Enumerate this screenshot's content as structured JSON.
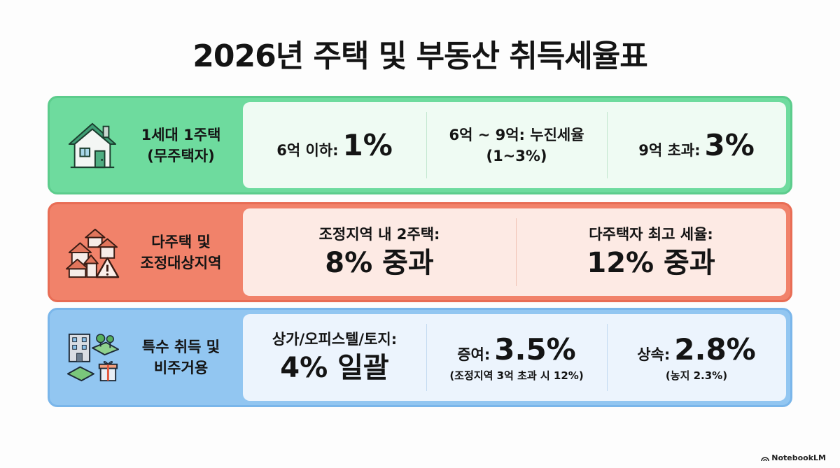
{
  "title": "2026년 주택 및 부동산 취득세율표",
  "rows": [
    {
      "label_line1": "1세대 1주택",
      "label_line2": "(무주택자)",
      "icon": "house-icon",
      "cells": [
        {
          "prefix": "6억 이하:",
          "value": "1%"
        },
        {
          "line1": "6억 ~ 9억: 누진세율",
          "line2": "(1~3%)"
        },
        {
          "prefix": "9억 초과:",
          "value": "3%"
        }
      ]
    },
    {
      "label_line1": "다주택 및",
      "label_line2": "조정대상지역",
      "icon": "multi-house-warning-icon",
      "cells": [
        {
          "line1": "조정지역 내 2주택:",
          "value": "8% 중과"
        },
        {
          "line1": "다주택자 최고 세율:",
          "value": "12% 중과"
        }
      ]
    },
    {
      "label_line1": "특수 취득 및",
      "label_line2": "비주거용",
      "icon": "building-land-gift-icon",
      "cells": [
        {
          "line1": "상가/오피스텔/토지:",
          "value": "4% 일괄"
        },
        {
          "prefix": "증여:",
          "value": "3.5%",
          "note": "(조정지역 3억 초과 시 12%)"
        },
        {
          "prefix": "상속:",
          "value": "2.8%",
          "note": "(농지 2.3%)"
        }
      ]
    }
  ],
  "brand": "NotebookLM",
  "colors": {
    "green_band": "#6edb9e",
    "red_band": "#f1826a",
    "blue_band": "#92c6f1"
  }
}
